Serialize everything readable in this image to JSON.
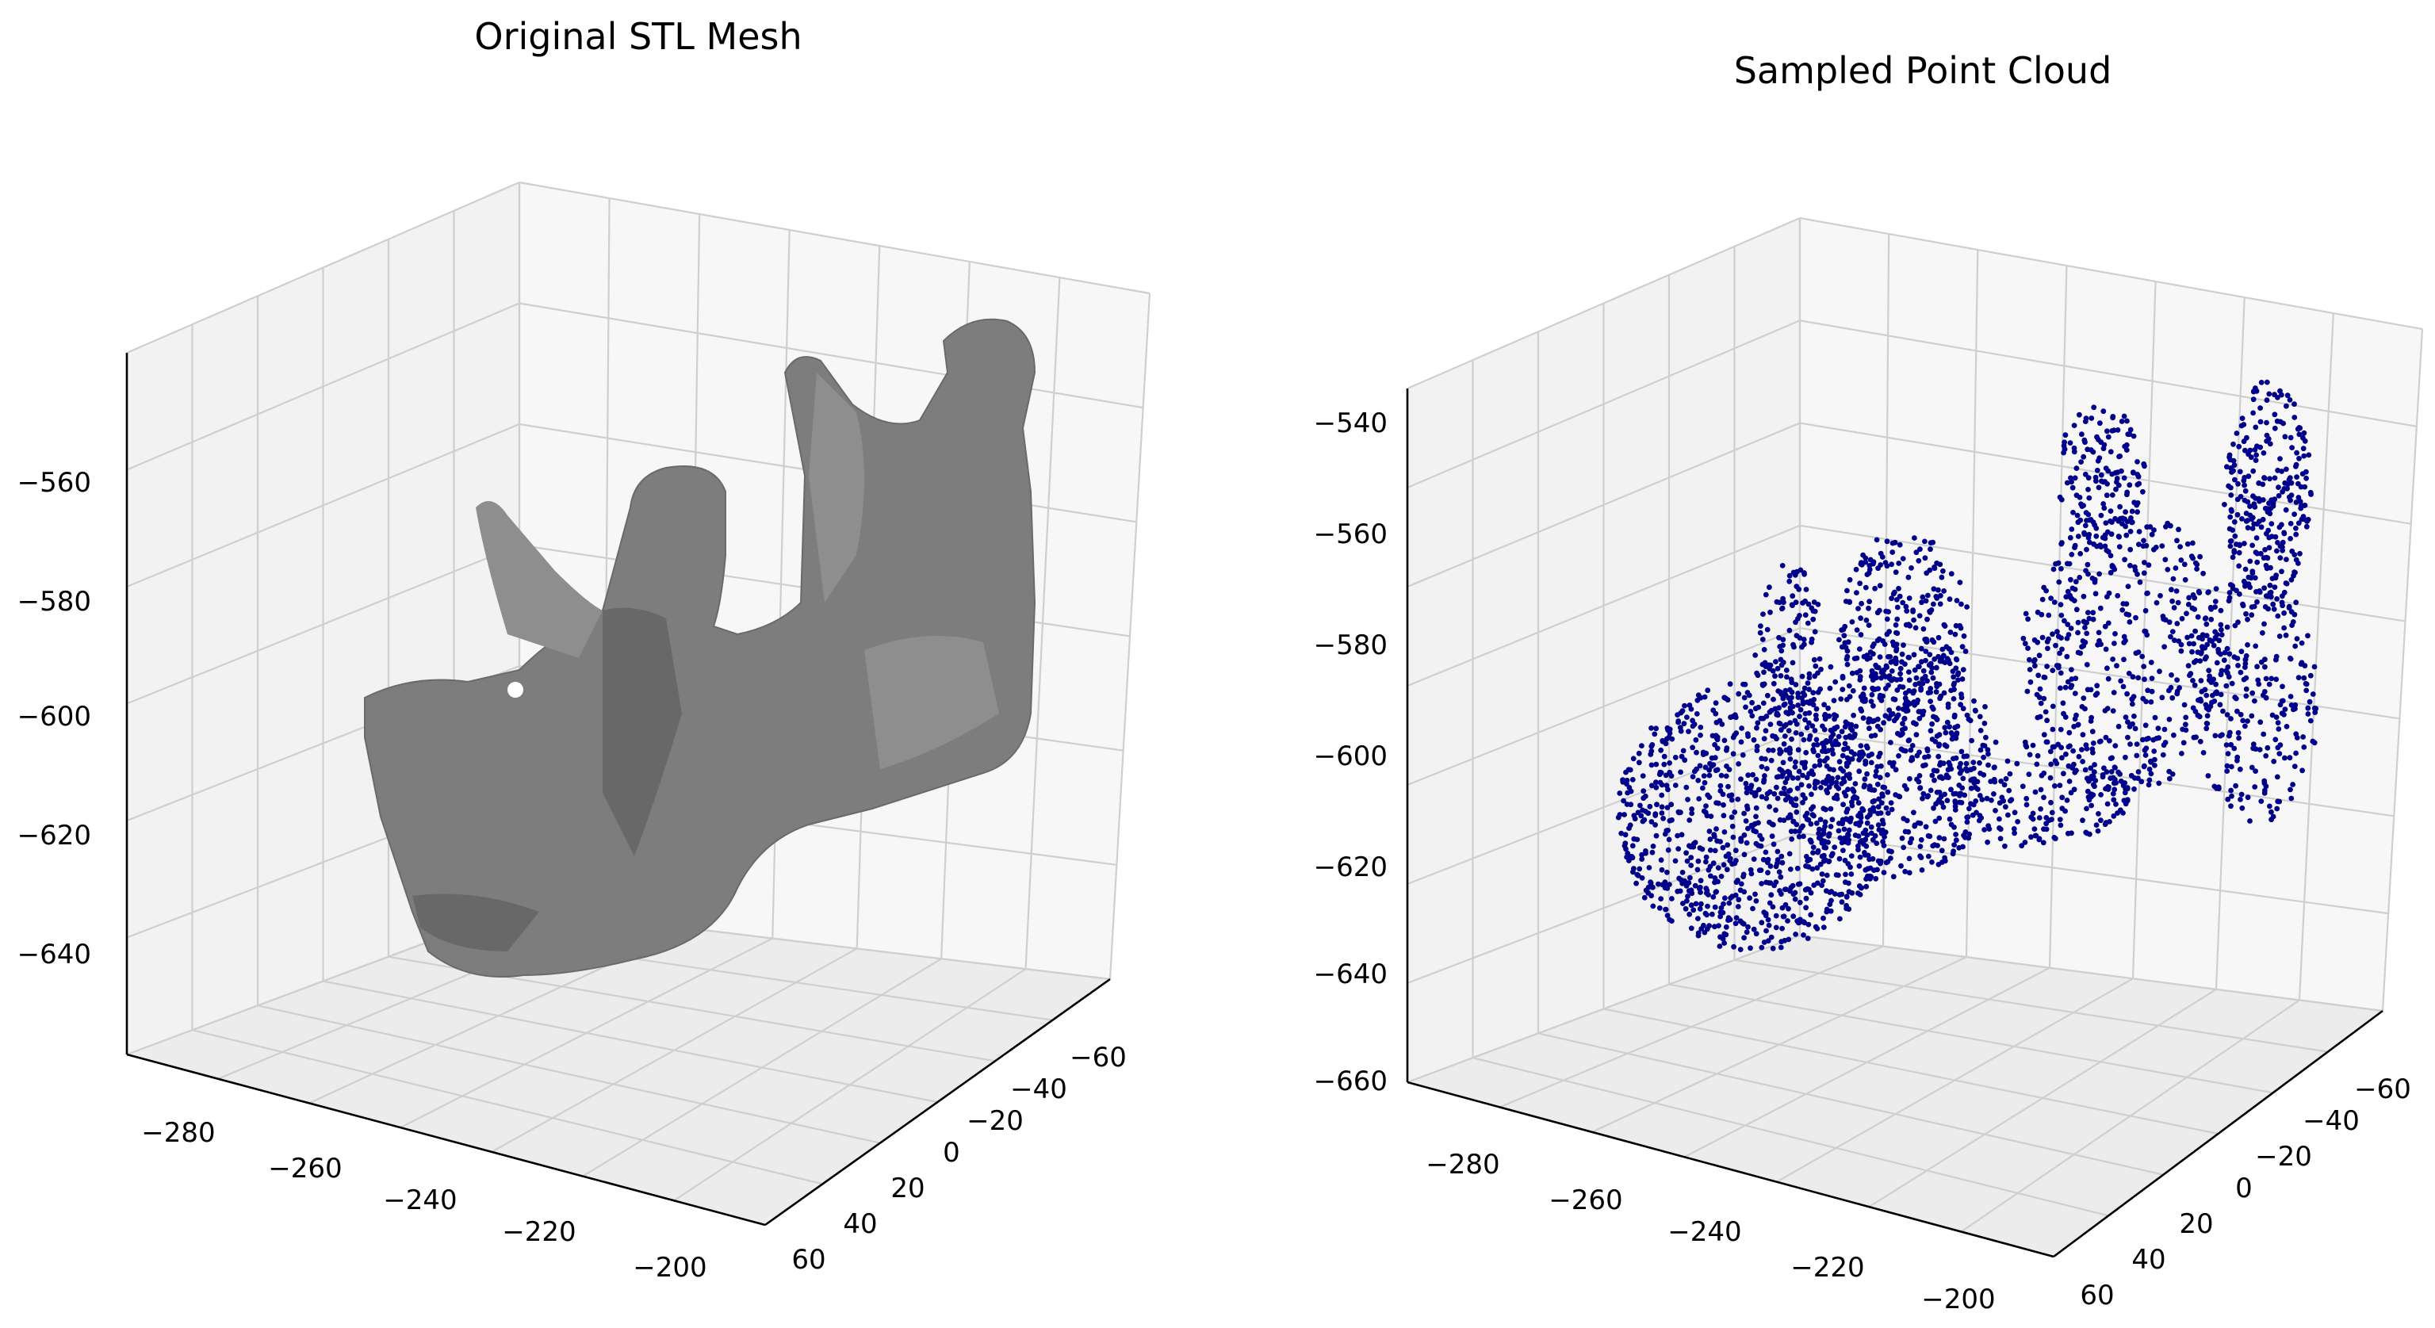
{
  "colors": {
    "mesh": "#7d7d7d",
    "points": "#00008b",
    "pane_left": "#f2f2f2",
    "pane_right": "#f7f7f7",
    "pane_floor": "#ececec",
    "grid": "#cfcfcf"
  },
  "chart_data": [
    {
      "type": "scatter",
      "style": "3d-surface-mesh",
      "title": "Original STL Mesh",
      "x_ticks": [
        "−280",
        "−260",
        "−240",
        "−220",
        "−200"
      ],
      "y_ticks": [
        "−60",
        "−40",
        "−20",
        "0",
        "20",
        "40",
        "60"
      ],
      "z_ticks": [
        "−560",
        "−580",
        "−600",
        "−620",
        "−640"
      ],
      "xlim": [
        -290,
        -195
      ],
      "ylim": [
        -70,
        65
      ],
      "zlim": [
        -655,
        -540
      ],
      "grid": true
    },
    {
      "type": "scatter",
      "style": "3d-point-cloud",
      "title": "Sampled Point Cloud",
      "x_ticks": [
        "−280",
        "−260",
        "−240",
        "−220",
        "−200"
      ],
      "y_ticks": [
        "−60",
        "−40",
        "−20",
        "0",
        "20",
        "40",
        "60"
      ],
      "z_ticks": [
        "−540",
        "−560",
        "−580",
        "−600",
        "−620",
        "−640",
        "−660"
      ],
      "xlim": [
        -290,
        -195
      ],
      "ylim": [
        -70,
        65
      ],
      "zlim": [
        -665,
        -535
      ],
      "grid": true,
      "marker_color": "#00008b"
    }
  ]
}
